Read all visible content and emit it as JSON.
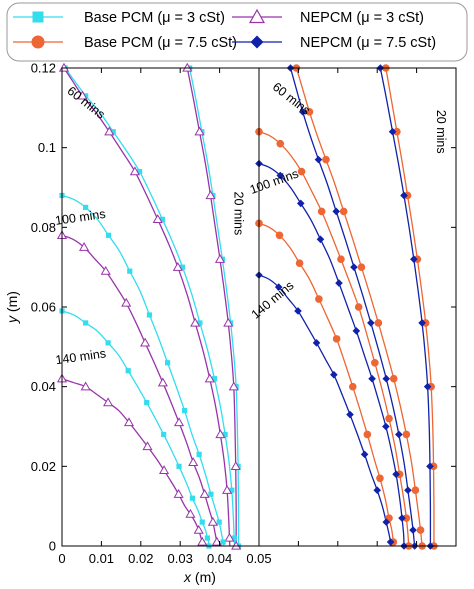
{
  "chart_data": {
    "type": "line",
    "xlabel": "x (m)",
    "ylabel": "y (m)",
    "xlim": [
      0,
      0.05
    ],
    "ylim": [
      0,
      0.12
    ],
    "x_ticks": [
      {
        "v": 0,
        "label": "0"
      },
      {
        "v": 0.01,
        "label": "0.01"
      },
      {
        "v": 0.02,
        "label": "0.02"
      },
      {
        "v": 0.03,
        "label": "0.03"
      },
      {
        "v": 0.04,
        "label": "0.04"
      },
      {
        "v": 0.05,
        "label": "0.05"
      }
    ],
    "y_ticks": [
      {
        "v": 0,
        "label": "0"
      },
      {
        "v": 0.02,
        "label": "0.02"
      },
      {
        "v": 0.04,
        "label": "0.04"
      },
      {
        "v": 0.06,
        "label": "0.06"
      },
      {
        "v": 0.08,
        "label": "0.08"
      },
      {
        "v": 0.1,
        "label": "0.1"
      },
      {
        "v": 0.12,
        "label": "0.12"
      }
    ],
    "legend": {
      "placement": "top",
      "entries": [
        {
          "label": "Base PCM (μ = 3 cSt)",
          "marker": "square",
          "color": "#33DDEE"
        },
        {
          "label": "NEPCM (μ = 3 cSt)",
          "marker": "triangle",
          "color": "#9933AA"
        },
        {
          "label": "Base PCM (μ = 7.5 cSt)",
          "marker": "circle",
          "color": "#EE6633"
        },
        {
          "label": "NEPCM (μ = 7.5 cSt)",
          "marker": "diamond",
          "color": "#1122AA"
        }
      ]
    },
    "panels": [
      {
        "name": "left",
        "annotations": [
          {
            "text": "60 mins",
            "x": 0.0055,
            "y": 0.1105,
            "rotate": 38
          },
          {
            "text": "20 mins",
            "x": 0.0438,
            "y": 0.0835,
            "rotate": 90
          },
          {
            "text": "100 mins",
            "x": 0.0048,
            "y": 0.0815,
            "rotate": -8
          },
          {
            "text": "140 mins",
            "x": 0.0049,
            "y": 0.0465,
            "rotate": -8
          }
        ],
        "series": [
          {
            "name": "Base PCM (μ = 3 cSt)",
            "time": "20 mins",
            "x": [
              0.0324,
              0.034,
              0.0355,
              0.037,
              0.0383,
              0.0395,
              0.0407,
              0.0418,
              0.0428,
              0.0436,
              0.0442,
              0.0445,
              0.0447,
              0.0448,
              0.0448
            ],
            "y": [
              0.12,
              0.112,
              0.104,
              0.096,
              0.088,
              0.08,
              0.072,
              0.064,
              0.056,
              0.048,
              0.04,
              0.03,
              0.02,
              0.01,
              0.0
            ]
          },
          {
            "name": "NEPCM (μ = 3 cSt)",
            "time": "20 mins",
            "x": [
              0.0318,
              0.0334,
              0.0349,
              0.0364,
              0.0377,
              0.0389,
              0.0401,
              0.0412,
              0.0422,
              0.043,
              0.0436,
              0.0439,
              0.0441,
              0.0442,
              0.0442
            ],
            "y": [
              0.12,
              0.112,
              0.104,
              0.096,
              0.088,
              0.08,
              0.072,
              0.064,
              0.056,
              0.048,
              0.04,
              0.03,
              0.02,
              0.01,
              0.0
            ]
          },
          {
            "name": "Base PCM (μ = 3 cSt)",
            "time": "60 mins",
            "x": [
              0.0008,
              0.003,
              0.006,
              0.0095,
              0.013,
              0.0165,
              0.0197,
              0.0227,
              0.0255,
              0.0282,
              0.0306,
              0.033,
              0.035,
              0.037,
              0.0387,
              0.0402,
              0.0414,
              0.0424,
              0.0431,
              0.0435,
              0.0437,
              0.0438
            ],
            "y": [
              0.12,
              0.117,
              0.113,
              0.109,
              0.104,
              0.099,
              0.094,
              0.088,
              0.082,
              0.076,
              0.07,
              0.063,
              0.056,
              0.049,
              0.042,
              0.035,
              0.028,
              0.021,
              0.014,
              0.007,
              0.002,
              0.0
            ]
          },
          {
            "name": "NEPCM (μ = 3 cSt)",
            "time": "60 mins",
            "x": [
              0.0005,
              0.0025,
              0.0052,
              0.0085,
              0.012,
              0.0153,
              0.0185,
              0.0215,
              0.0243,
              0.027,
              0.0294,
              0.0318,
              0.0338,
              0.0358,
              0.0375,
              0.039,
              0.0402,
              0.0412,
              0.0419,
              0.0423,
              0.0425,
              0.0426
            ],
            "y": [
              0.12,
              0.117,
              0.113,
              0.109,
              0.104,
              0.099,
              0.094,
              0.088,
              0.082,
              0.076,
              0.07,
              0.063,
              0.056,
              0.049,
              0.042,
              0.035,
              0.028,
              0.021,
              0.014,
              0.007,
              0.002,
              0.0
            ]
          },
          {
            "name": "Base PCM (μ = 3 cSt)",
            "time": "100 mins",
            "x": [
              0.0,
              0.003,
              0.006,
              0.009,
              0.0118,
              0.0146,
              0.0172,
              0.0198,
              0.0222,
              0.0246,
              0.0268,
              0.029,
              0.0311,
              0.033,
              0.0348,
              0.0364,
              0.0378,
              0.039,
              0.0399,
              0.0405,
              0.0409,
              0.0411
            ],
            "y": [
              0.088,
              0.087,
              0.085,
              0.082,
              0.078,
              0.074,
              0.069,
              0.064,
              0.058,
              0.052,
              0.046,
              0.04,
              0.034,
              0.028,
              0.023,
              0.018,
              0.013,
              0.009,
              0.006,
              0.003,
              0.001,
              0.0
            ]
          },
          {
            "name": "NEPCM (μ = 3 cSt)",
            "time": "100 mins",
            "x": [
              0.0,
              0.0028,
              0.0056,
              0.0084,
              0.0111,
              0.0138,
              0.0163,
              0.0188,
              0.0211,
              0.0234,
              0.0256,
              0.0277,
              0.0297,
              0.0316,
              0.0333,
              0.0349,
              0.0362,
              0.0374,
              0.0383,
              0.0389,
              0.0393,
              0.0395
            ],
            "y": [
              0.078,
              0.077,
              0.075,
              0.072,
              0.069,
              0.065,
              0.061,
              0.056,
              0.051,
              0.046,
              0.041,
              0.036,
              0.031,
              0.026,
              0.021,
              0.017,
              0.013,
              0.009,
              0.006,
              0.003,
              0.001,
              0.0
            ]
          },
          {
            "name": "Base PCM (μ = 3 cSt)",
            "time": "140 mins",
            "x": [
              0.0,
              0.003,
              0.006,
              0.0089,
              0.0117,
              0.0143,
              0.0168,
              0.0192,
              0.0215,
              0.0237,
              0.0258,
              0.0278,
              0.0297,
              0.0315,
              0.0331,
              0.0345,
              0.0356,
              0.0364,
              0.0369,
              0.0372,
              0.0373
            ],
            "y": [
              0.059,
              0.058,
              0.056,
              0.054,
              0.051,
              0.048,
              0.044,
              0.04,
              0.036,
              0.032,
              0.028,
              0.024,
              0.02,
              0.016,
              0.012,
              0.009,
              0.006,
              0.004,
              0.002,
              0.001,
              0.0
            ]
          },
          {
            "name": "NEPCM (μ = 3 cSt)",
            "time": "140 mins",
            "x": [
              0.0,
              0.003,
              0.006,
              0.0089,
              0.0117,
              0.0144,
              0.017,
              0.0194,
              0.0217,
              0.0239,
              0.0259,
              0.0278,
              0.0296,
              0.0312,
              0.0326,
              0.0338,
              0.0347,
              0.0353,
              0.0356,
              0.0357
            ],
            "y": [
              0.042,
              0.041,
              0.04,
              0.038,
              0.036,
              0.034,
              0.031,
              0.028,
              0.025,
              0.022,
              0.019,
              0.016,
              0.013,
              0.01,
              0.008,
              0.006,
              0.004,
              0.002,
              0.001,
              0.0
            ]
          }
        ]
      },
      {
        "name": "right",
        "annotations": [
          {
            "text": "60 mins",
            "x": 0.0076,
            "y": 0.1115,
            "rotate": 38
          },
          {
            "text": "20 mins",
            "x": 0.0452,
            "y": 0.104,
            "rotate": 90
          },
          {
            "text": "100 mins",
            "x": 0.0042,
            "y": 0.0905,
            "rotate": -20
          },
          {
            "text": "140 mins",
            "x": 0.0041,
            "y": 0.061,
            "rotate": -40
          }
        ],
        "series": [
          {
            "name": "Base PCM (μ = 7.5 cSt)",
            "time": "20 mins",
            "x": [
              0.0322,
              0.0336,
              0.035,
              0.0364,
              0.0377,
              0.039,
              0.0402,
              0.0413,
              0.0423,
              0.0431,
              0.0437,
              0.0441,
              0.0443,
              0.0444,
              0.0444
            ],
            "y": [
              0.12,
              0.112,
              0.104,
              0.096,
              0.088,
              0.08,
              0.072,
              0.064,
              0.056,
              0.048,
              0.04,
              0.03,
              0.02,
              0.01,
              0.0
            ]
          },
          {
            "name": "NEPCM (μ = 7.5 cSt)",
            "time": "20 mins",
            "x": [
              0.0308,
              0.0324,
              0.0339,
              0.0354,
              0.0368,
              0.0381,
              0.0393,
              0.0404,
              0.0414,
              0.0422,
              0.0428,
              0.0432,
              0.0434,
              0.0435,
              0.0435
            ],
            "y": [
              0.12,
              0.112,
              0.104,
              0.096,
              0.088,
              0.08,
              0.072,
              0.064,
              0.056,
              0.048,
              0.04,
              0.03,
              0.02,
              0.01,
              0.0
            ]
          },
          {
            "name": "Base PCM (μ = 7.5 cSt)",
            "time": "60 mins",
            "x": [
              0.0095,
              0.011,
              0.0128,
              0.0148,
              0.017,
              0.0192,
              0.0215,
              0.0238,
              0.026,
              0.0282,
              0.0303,
              0.0323,
              0.0342,
              0.0359,
              0.0374,
              0.0387,
              0.0397,
              0.0405,
              0.041,
              0.0413,
              0.0414
            ],
            "y": [
              0.12,
              0.115,
              0.109,
              0.103,
              0.097,
              0.091,
              0.084,
              0.077,
              0.07,
              0.063,
              0.056,
              0.049,
              0.042,
              0.035,
              0.028,
              0.021,
              0.014,
              0.008,
              0.004,
              0.001,
              0.0
            ]
          },
          {
            "name": "NEPCM (μ = 7.5 cSt)",
            "time": "60 mins",
            "x": [
              0.008,
              0.0094,
              0.0111,
              0.013,
              0.0151,
              0.0173,
              0.0196,
              0.0219,
              0.0241,
              0.0263,
              0.0284,
              0.0304,
              0.0323,
              0.034,
              0.0355,
              0.0368,
              0.0378,
              0.0386,
              0.0391,
              0.0394,
              0.0395
            ],
            "y": [
              0.12,
              0.115,
              0.109,
              0.103,
              0.097,
              0.091,
              0.084,
              0.077,
              0.07,
              0.063,
              0.056,
              0.049,
              0.042,
              0.035,
              0.028,
              0.021,
              0.014,
              0.008,
              0.004,
              0.001,
              0.0
            ]
          },
          {
            "name": "Base PCM (μ = 7.5 cSt)",
            "time": "100 mins",
            "x": [
              0.0,
              0.0027,
              0.0054,
              0.0081,
              0.0108,
              0.0134,
              0.0159,
              0.0184,
              0.0208,
              0.0231,
              0.0253,
              0.0274,
              0.0294,
              0.0313,
              0.033,
              0.0345,
              0.0357,
              0.0367,
              0.0374,
              0.0378,
              0.038
            ],
            "y": [
              0.104,
              0.103,
              0.101,
              0.098,
              0.094,
              0.089,
              0.084,
              0.078,
              0.072,
              0.066,
              0.06,
              0.053,
              0.046,
              0.039,
              0.032,
              0.025,
              0.018,
              0.012,
              0.007,
              0.003,
              0.0
            ]
          },
          {
            "name": "NEPCM (μ = 7.5 cSt)",
            "time": "100 mins",
            "x": [
              0.0,
              0.0027,
              0.0054,
              0.008,
              0.0106,
              0.0131,
              0.0156,
              0.018,
              0.0203,
              0.0225,
              0.0247,
              0.0267,
              0.0287,
              0.0305,
              0.0322,
              0.0336,
              0.0348,
              0.0357,
              0.0363,
              0.0367,
              0.0368
            ],
            "y": [
              0.096,
              0.095,
              0.093,
              0.09,
              0.086,
              0.082,
              0.077,
              0.072,
              0.066,
              0.06,
              0.054,
              0.048,
              0.042,
              0.036,
              0.03,
              0.024,
              0.018,
              0.012,
              0.007,
              0.003,
              0.0
            ]
          },
          {
            "name": "Base PCM (μ = 7.5 cSt)",
            "time": "140 mins",
            "x": [
              0.0,
              0.0026,
              0.0052,
              0.0078,
              0.0103,
              0.0128,
              0.0152,
              0.0175,
              0.0197,
              0.0218,
              0.0238,
              0.0257,
              0.0275,
              0.0292,
              0.0307,
              0.032,
              0.033,
              0.0337,
              0.0341,
              0.0343
            ],
            "y": [
              0.081,
              0.08,
              0.078,
              0.075,
              0.071,
              0.067,
              0.062,
              0.057,
              0.052,
              0.046,
              0.04,
              0.034,
              0.028,
              0.022,
              0.017,
              0.012,
              0.007,
              0.004,
              0.001,
              0.0
            ]
          },
          {
            "name": "NEPCM (μ = 7.5 cSt)",
            "time": "140 mins",
            "x": [
              0.0,
              0.0025,
              0.005,
              0.0075,
              0.0099,
              0.0123,
              0.0146,
              0.0168,
              0.019,
              0.0211,
              0.0231,
              0.025,
              0.0268,
              0.0285,
              0.03,
              0.0313,
              0.0323,
              0.033,
              0.0334,
              0.0336
            ],
            "y": [
              0.068,
              0.067,
              0.065,
              0.062,
              0.059,
              0.055,
              0.051,
              0.047,
              0.043,
              0.038,
              0.033,
              0.028,
              0.023,
              0.018,
              0.014,
              0.01,
              0.006,
              0.003,
              0.001,
              0.0
            ]
          }
        ]
      }
    ]
  }
}
